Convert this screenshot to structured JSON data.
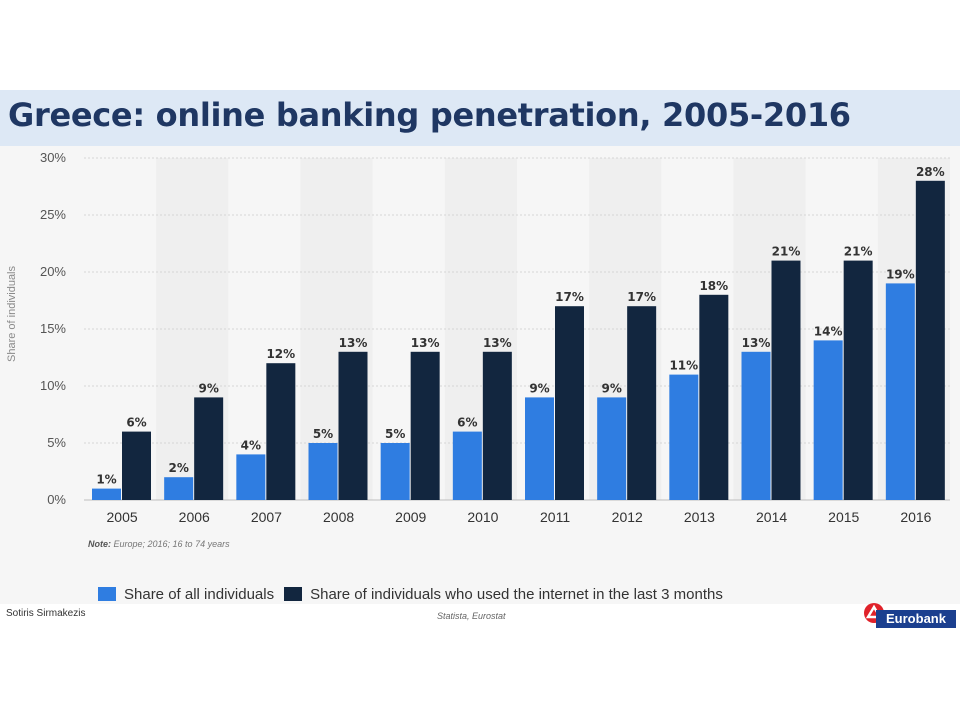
{
  "title": "Greece: online banking penetration, 2005-2016",
  "chart_data": {
    "type": "bar",
    "categories": [
      "2005",
      "2006",
      "2007",
      "2008",
      "2009",
      "2010",
      "2011",
      "2012",
      "2013",
      "2014",
      "2015",
      "2016"
    ],
    "series": [
      {
        "name": "Share of all individuals",
        "color": "#2f7de1",
        "values": [
          1,
          2,
          4,
          5,
          5,
          6,
          9,
          9,
          11,
          13,
          14,
          19
        ],
        "labels": [
          "1%",
          "2%",
          "4%",
          "5%",
          "5%",
          "6%",
          "9%",
          "9%",
          "11%",
          "13%",
          "14%",
          "19%"
        ]
      },
      {
        "name": "Share of individuals who used the internet in the last 3 months",
        "color": "#12263f",
        "values": [
          6,
          9,
          12,
          13,
          13,
          13,
          17,
          17,
          18,
          21,
          21,
          28
        ],
        "labels": [
          "6%",
          "9%",
          "12%",
          "13%",
          "13%",
          "13%",
          "17%",
          "17%",
          "18%",
          "21%",
          "21%",
          "28%"
        ]
      }
    ],
    "ylabel": "Share of individuals",
    "ylim": [
      0,
      30
    ],
    "yticks": [
      0,
      5,
      10,
      15,
      20,
      25,
      30
    ],
    "ytick_labels": [
      "0%",
      "5%",
      "10%",
      "15%",
      "20%",
      "25%",
      "30%"
    ],
    "grid": true,
    "legend_position": "bottom"
  },
  "note": {
    "label": "Note:",
    "text": " Europe; 2016; 16 to 74 years"
  },
  "legend": {
    "item1": "Share of all individuals",
    "item2": "Share of individuals who used the internet in the last 3 months"
  },
  "footer": {
    "author": "Sotiris Sirmakezis",
    "source": "Statista, Eurostat",
    "logo_text": "Eurobank"
  },
  "colors": {
    "accent_blue": "#2f7de1",
    "dark_navy": "#12263f",
    "title_color": "#1f3763",
    "logo_red": "#e0222a"
  }
}
